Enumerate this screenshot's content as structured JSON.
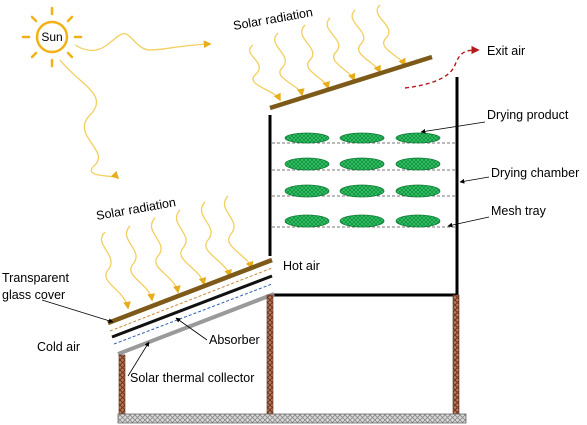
{
  "diagram": {
    "sun_label": "Sun",
    "solar_radiation_top": "Solar radiation",
    "solar_radiation_left": "Solar radiation",
    "exit_air": "Exit air",
    "drying_product": "Drying product",
    "drying_chamber": "Drying chamber",
    "mesh_tray": "Mesh tray",
    "hot_air": "Hot air",
    "cover_line1": "Transparent",
    "cover_line2": "glass cover",
    "cold_air": "Cold air",
    "absorber": "Absorber",
    "collector": "Solar thermal collector"
  },
  "colors": {
    "sun": "#f2b215",
    "ray": "#f3cf5e",
    "ray_arrow": "#e7ad1c",
    "glass": "#7d5a1a",
    "absorber": "#111111",
    "collector_plate": "#9a9a9a",
    "wall": "#000000",
    "brick": "#8a4a2e",
    "product": "#2ec463",
    "exit_arrow": "#b31b1b"
  }
}
